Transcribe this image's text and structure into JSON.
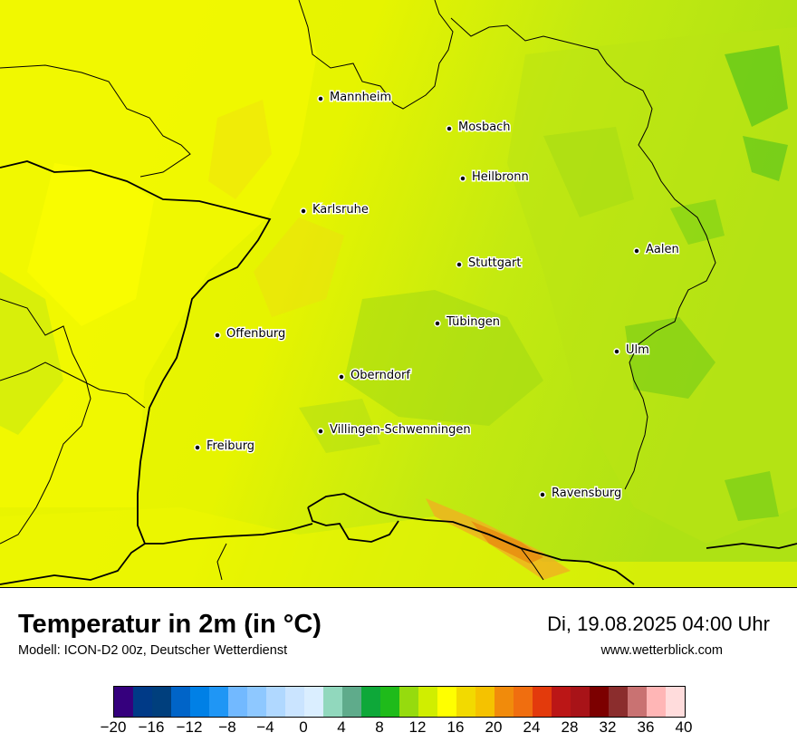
{
  "title": "Temperatur in 2m (in °C)",
  "model": "Modell: ICON-D2 00z, Deutscher Wetterdienst",
  "datetime": "Di, 19.08.2025 04:00 Uhr",
  "website": "www.wetterblick.com",
  "cities": [
    {
      "name": "Mannheim"
    },
    {
      "name": "Mosbach"
    },
    {
      "name": "Heilbronn"
    },
    {
      "name": "Karlsruhe"
    },
    {
      "name": "Aalen"
    },
    {
      "name": "Stuttgart"
    },
    {
      "name": "Tübingen"
    },
    {
      "name": "Offenburg"
    },
    {
      "name": "Ulm"
    },
    {
      "name": "Oberndorf"
    },
    {
      "name": "Villingen-Schwenningen"
    },
    {
      "name": "Freiburg"
    },
    {
      "name": "Ravensburg"
    }
  ],
  "colorbar": {
    "colors": [
      "#35007d",
      "#003a87",
      "#003f7d",
      "#0064c8",
      "#0080e6",
      "#1f96f5",
      "#72b9ff",
      "#8ec8ff",
      "#b0d8ff",
      "#cae4ff",
      "#daeeff",
      "#91d8bd",
      "#5fab8b",
      "#0ea839",
      "#1fbb1a",
      "#96db0e",
      "#d0ee00",
      "#ffff00",
      "#f2da00",
      "#f5c200",
      "#f18b0b",
      "#f06e0f",
      "#e33a0c",
      "#bb1616",
      "#a81318",
      "#7c0000",
      "#8b2d2d",
      "#c97272",
      "#ffb6b6",
      "#ffdcdc"
    ],
    "tick_labels": [
      "−20",
      "−16",
      "−12",
      "−8",
      "−4",
      "0",
      "4",
      "8",
      "12",
      "16",
      "20",
      "24",
      "28",
      "32",
      "36",
      "40"
    ]
  }
}
